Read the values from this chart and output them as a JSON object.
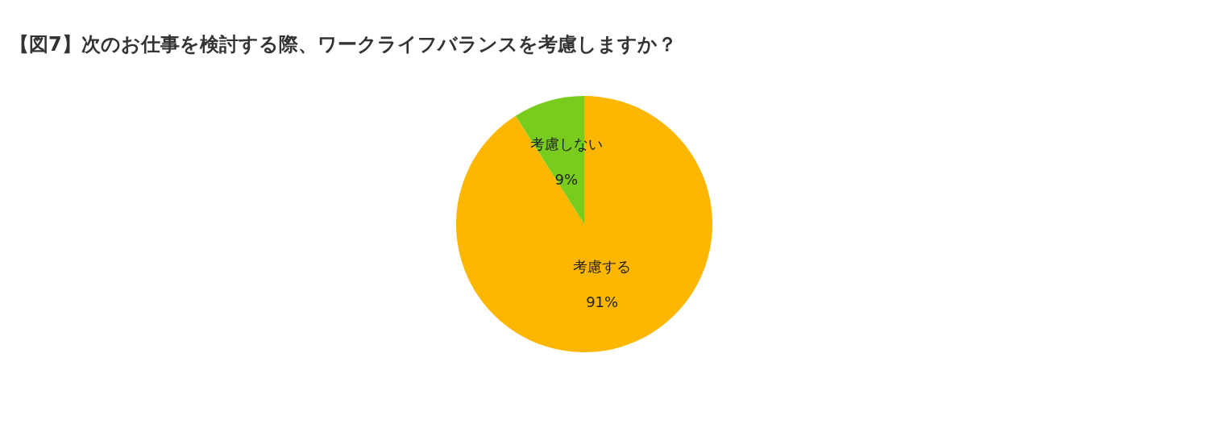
{
  "chart_data": {
    "type": "pie",
    "title": "【図7】次のお仕事を検討する際、ワークライフバランスを考慮しますか？",
    "categories": [
      "考慮する",
      "考慮しない"
    ],
    "values": [
      91,
      9
    ],
    "colors": [
      "#fdb700",
      "#77cc1e"
    ],
    "value_labels": [
      "91%",
      "9%"
    ]
  }
}
